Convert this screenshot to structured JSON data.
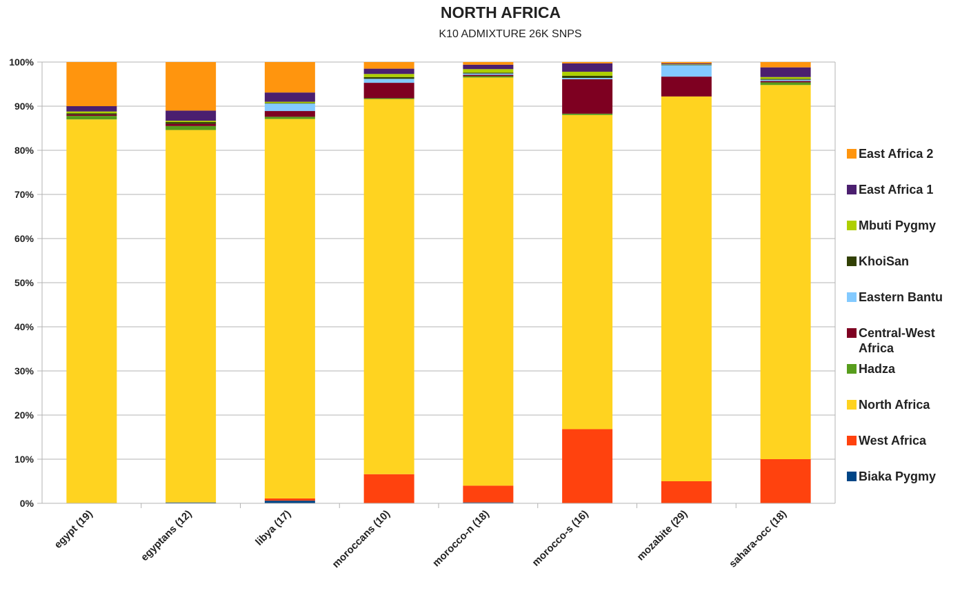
{
  "chart_data": {
    "type": "bar",
    "stacked": true,
    "title": "NORTH AFRICA",
    "subtitle": "K10 ADMIXTURE 26K SNPS",
    "xlabel": "",
    "ylabel": "",
    "ylim": [
      0,
      100
    ],
    "ytick_labels": [
      "0%",
      "10%",
      "20%",
      "30%",
      "40%",
      "50%",
      "60%",
      "70%",
      "80%",
      "90%",
      "100%"
    ],
    "grid": true,
    "legend_position": "right",
    "categories": [
      "egypt (19)",
      "egyptans (12)",
      "libya (17)",
      "moroccans (10)",
      "morocco-n (18)",
      "morocco-s (16)",
      "mozabite (29)",
      "sahara-occ (18)"
    ],
    "series": [
      {
        "name": "Biaka Pygmy",
        "color": "#004586",
        "values": [
          0.0,
          0.2,
          0.6,
          0.0,
          0.2,
          0.0,
          0.0,
          0.0
        ]
      },
      {
        "name": "West Africa",
        "color": "#ff420e",
        "values": [
          0.0,
          0.0,
          0.5,
          6.6,
          3.8,
          16.8,
          5.0,
          10.0
        ]
      },
      {
        "name": "North Africa",
        "color": "#ffd320",
        "values": [
          87.0,
          84.4,
          86.0,
          85.0,
          92.5,
          71.2,
          87.2,
          84.8
        ]
      },
      {
        "name": "Hadza",
        "color": "#579d1c",
        "values": [
          0.8,
          0.9,
          0.5,
          0.2,
          0.3,
          0.3,
          0.0,
          0.6
        ]
      },
      {
        "name": "Central-West Africa",
        "color": "#7e0021",
        "values": [
          0.3,
          0.5,
          1.3,
          3.5,
          0.3,
          7.8,
          4.5,
          0.3
        ]
      },
      {
        "name": "Eastern Bantu",
        "color": "#83caff",
        "values": [
          0.0,
          0.0,
          1.7,
          0.9,
          0.3,
          0.3,
          2.6,
          0.3
        ]
      },
      {
        "name": "KhoiSan",
        "color": "#314004",
        "values": [
          0.3,
          0.4,
          0.1,
          0.4,
          0.2,
          0.5,
          0.1,
          0.2
        ]
      },
      {
        "name": "Mbuti Pygmy",
        "color": "#aecf00",
        "values": [
          0.4,
          0.3,
          0.3,
          0.7,
          0.8,
          0.9,
          0.1,
          0.4
        ]
      },
      {
        "name": "East Africa 1",
        "color": "#4b1f6f",
        "values": [
          1.2,
          2.3,
          2.1,
          1.2,
          1.0,
          1.9,
          0.2,
          2.2
        ]
      },
      {
        "name": "East Africa 2",
        "color": "#ff950e",
        "values": [
          10.0,
          11.0,
          6.9,
          1.5,
          0.6,
          0.3,
          0.3,
          1.2
        ]
      }
    ],
    "legend_order": [
      "East Africa 2",
      "East Africa 1",
      "Mbuti Pygmy",
      "KhoiSan",
      "Eastern Bantu",
      "Central-West Africa",
      "Hadza",
      "North Africa",
      "West Africa",
      "Biaka Pygmy"
    ]
  }
}
